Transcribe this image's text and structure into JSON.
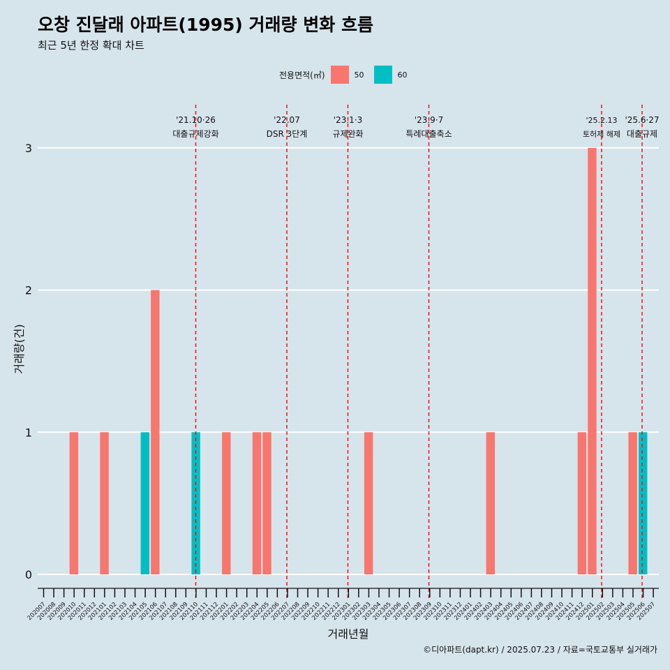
{
  "title": "오창 진달래 아파트(1995) 거래량 변화 흐름",
  "subtitle": "최근 5년 한정 확대 차트",
  "caption": "©디아파트(dapt.kr) / 2025.07.23 / 자료=국토교통부 실거래가",
  "legend": {
    "title": "전용면적(㎡)",
    "items": [
      {
        "label": "50",
        "color": "#f8766d"
      },
      {
        "label": "60",
        "color": "#00bfc4"
      }
    ]
  },
  "chart_data": {
    "type": "bar",
    "xlabel": "거래년월",
    "ylabel": "거래량(건)",
    "ylim": [
      0,
      3
    ],
    "yticks": [
      "0",
      "1",
      "2",
      "3"
    ],
    "categories": [
      "202007",
      "202008",
      "202009",
      "202010",
      "202011",
      "202012",
      "202101",
      "202102",
      "202103",
      "202104",
      "202105",
      "202106",
      "202107",
      "202108",
      "202109",
      "202110",
      "202111",
      "202112",
      "202201",
      "202202",
      "202203",
      "202204",
      "202205",
      "202206",
      "202207",
      "202208",
      "202209",
      "202210",
      "202211",
      "202212",
      "202301",
      "202302",
      "202303",
      "202304",
      "202305",
      "202306",
      "202307",
      "202308",
      "202309",
      "202310",
      "202311",
      "202312",
      "202401",
      "202402",
      "202403",
      "202404",
      "202405",
      "202406",
      "202407",
      "202408",
      "202409",
      "202410",
      "202411",
      "202412",
      "202501",
      "202502",
      "202503",
      "202504",
      "202505",
      "202506",
      "202507"
    ],
    "series": [
      {
        "name": "50",
        "color": "#f8766d",
        "values": [
          {
            "month": "202010",
            "count": 1
          },
          {
            "month": "202101",
            "count": 1
          },
          {
            "month": "202106",
            "count": 2
          },
          {
            "month": "202201",
            "count": 1
          },
          {
            "month": "202204",
            "count": 1
          },
          {
            "month": "202205",
            "count": 1
          },
          {
            "month": "202303",
            "count": 1
          },
          {
            "month": "202403",
            "count": 1
          },
          {
            "month": "202412",
            "count": 1
          },
          {
            "month": "202501",
            "count": 3
          },
          {
            "month": "202505",
            "count": 1
          }
        ]
      },
      {
        "name": "60",
        "color": "#00bfc4",
        "values": [
          {
            "month": "202105",
            "count": 1
          },
          {
            "month": "202110",
            "count": 1
          },
          {
            "month": "202506",
            "count": 1
          }
        ]
      }
    ],
    "annotations": [
      {
        "date_label": "'21.10·26",
        "text": "대출규제강화",
        "month": "202110"
      },
      {
        "date_label": "'22.07",
        "text": "DSR 3단계",
        "month": "202207"
      },
      {
        "date_label": "'23.1·3",
        "text": "규제완화",
        "month": "202301"
      },
      {
        "date_label": "'23.9·7",
        "text": "특례대출축소",
        "month": "202309"
      },
      {
        "date_label": "'25.2.13",
        "text": "토허제 해제",
        "month": "202502"
      },
      {
        "date_label": "'25.6·27",
        "text": "대출규제",
        "month": "202506"
      }
    ],
    "grid": true,
    "legend_position": "top"
  }
}
